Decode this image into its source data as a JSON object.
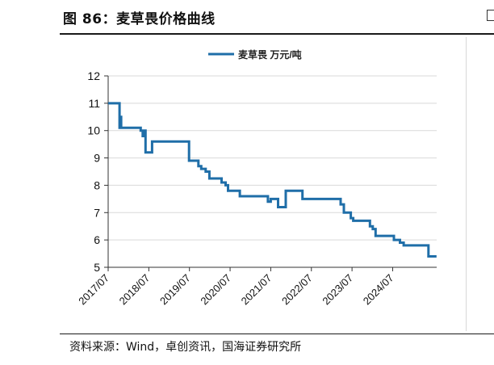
{
  "figure": {
    "title": "图 86：麦草畏价格曲线",
    "source": "资料来源：Wind，卓创资讯，国海证券研究所"
  },
  "colors": {
    "line": "#1f6ea8",
    "grid": "#d9d9d9",
    "axis": "#333333"
  },
  "chart_data": {
    "type": "line",
    "title": "",
    "xlabel": "",
    "ylabel": "",
    "ylim": [
      5,
      12
    ],
    "yticks": [
      "5",
      "6",
      "7",
      "8",
      "9",
      "10",
      "11",
      "12"
    ],
    "xlim": [
      2017.583,
      2025.583
    ],
    "xticks": [
      {
        "label": "2017/07",
        "x": 2017.5
      },
      {
        "label": "2018/07",
        "x": 2018.5
      },
      {
        "label": "2019/07",
        "x": 2019.5
      },
      {
        "label": "2020/07",
        "x": 2020.5
      },
      {
        "label": "2021/07",
        "x": 2021.5
      },
      {
        "label": "2022/07",
        "x": 2022.5
      },
      {
        "label": "2023/07",
        "x": 2023.5
      },
      {
        "label": "2024/07",
        "x": 2024.5
      }
    ],
    "grid": true,
    "legend_position": "top-center",
    "series": [
      {
        "name": "麦草畏 万元/吨",
        "step": true,
        "points": [
          {
            "x": 2017.5,
            "y": 11.0
          },
          {
            "x": 2017.78,
            "y": 10.1
          },
          {
            "x": 2017.8,
            "y": 10.5
          },
          {
            "x": 2017.82,
            "y": 10.1
          },
          {
            "x": 2018.3,
            "y": 10.0
          },
          {
            "x": 2018.35,
            "y": 9.8
          },
          {
            "x": 2018.37,
            "y": 10.0
          },
          {
            "x": 2018.42,
            "y": 9.2
          },
          {
            "x": 2018.58,
            "y": 9.6
          },
          {
            "x": 2019.49,
            "y": 8.9
          },
          {
            "x": 2019.72,
            "y": 8.7
          },
          {
            "x": 2019.79,
            "y": 8.6
          },
          {
            "x": 2019.9,
            "y": 8.5
          },
          {
            "x": 2019.99,
            "y": 8.25
          },
          {
            "x": 2020.29,
            "y": 8.1
          },
          {
            "x": 2020.39,
            "y": 8.0
          },
          {
            "x": 2020.45,
            "y": 7.8
          },
          {
            "x": 2020.74,
            "y": 7.6
          },
          {
            "x": 2021.43,
            "y": 7.4
          },
          {
            "x": 2021.5,
            "y": 7.5
          },
          {
            "x": 2021.68,
            "y": 7.2
          },
          {
            "x": 2021.87,
            "y": 7.8
          },
          {
            "x": 2022.28,
            "y": 7.5
          },
          {
            "x": 2023.22,
            "y": 7.3
          },
          {
            "x": 2023.3,
            "y": 7.0
          },
          {
            "x": 2023.47,
            "y": 6.8
          },
          {
            "x": 2023.53,
            "y": 6.7
          },
          {
            "x": 2023.94,
            "y": 6.5
          },
          {
            "x": 2024.01,
            "y": 6.4
          },
          {
            "x": 2024.08,
            "y": 6.15
          },
          {
            "x": 2024.53,
            "y": 6.0
          },
          {
            "x": 2024.68,
            "y": 5.9
          },
          {
            "x": 2024.77,
            "y": 5.8
          },
          {
            "x": 2025.38,
            "y": 5.4
          },
          {
            "x": 2025.58,
            "y": 5.4
          }
        ]
      }
    ]
  }
}
